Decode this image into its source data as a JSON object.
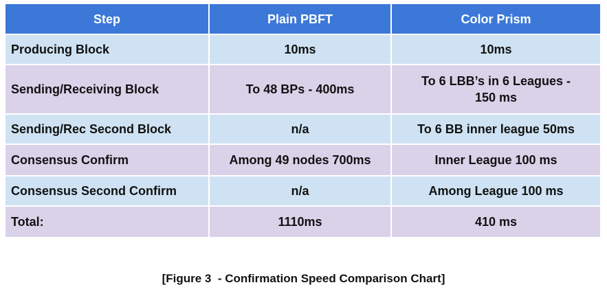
{
  "table": {
    "headers": [
      "Step",
      "Plain PBFT",
      "Color Prism"
    ],
    "rows": [
      [
        "Producing Block",
        "10ms",
        "10ms"
      ],
      [
        "Sending/Receiving Block",
        "To 48 BPs - 400ms",
        "To 6 LBB’s in 6 Leagues - 150 ms"
      ],
      [
        "Sending/Rec Second Block",
        "n/a",
        "To 6 BB inner league 50ms"
      ],
      [
        "Consensus Confirm",
        "Among 49 nodes 700ms",
        "Inner League 100 ms"
      ],
      [
        "Consensus Second Confirm",
        "n/a",
        "Among League 100 ms"
      ],
      [
        "Total:",
        "1110ms",
        "410 ms"
      ]
    ]
  },
  "colors": {
    "header": "#3c78d8",
    "row_blue": "#cfe2f3",
    "row_purple": "#d9d2e9"
  },
  "caption": "[Figure 3  - Confirmation Speed Comparison Chart]"
}
